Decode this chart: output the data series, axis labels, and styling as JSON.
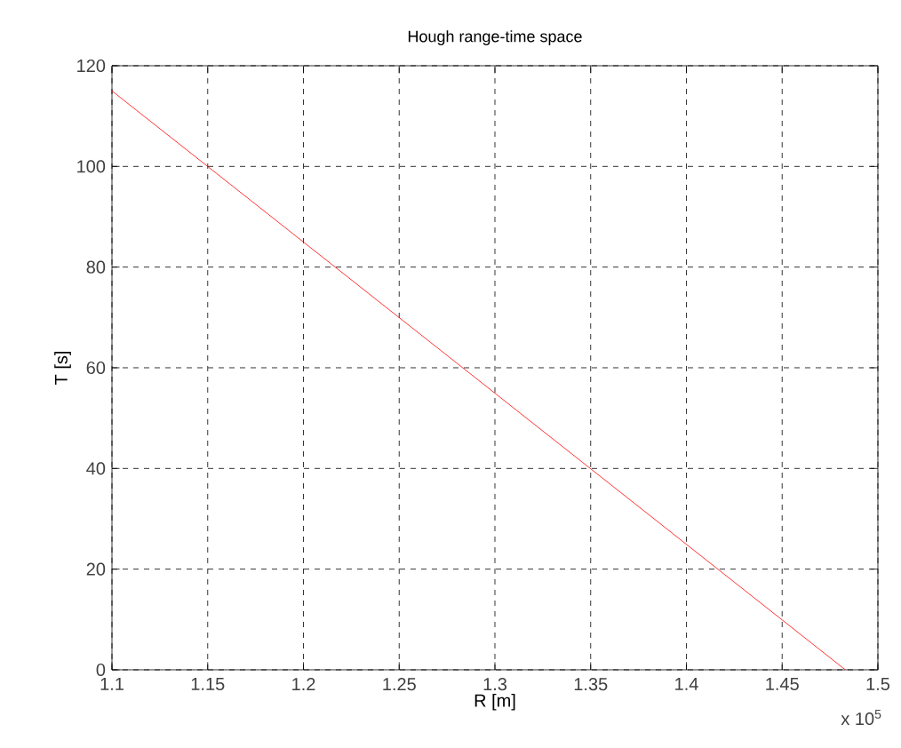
{
  "chart_data": {
    "type": "line",
    "title": "Hough range-time space",
    "xlabel": "R [m]",
    "ylabel": "T [s]",
    "x": [
      1.1,
      1.483
    ],
    "series": [
      {
        "color": "#ff0000",
        "values": [
          115,
          0
        ]
      }
    ],
    "xlim": [
      1.1,
      1.5
    ],
    "xticks": [
      1.1,
      1.15,
      1.2,
      1.25,
      1.3,
      1.35,
      1.4,
      1.45,
      1.5
    ],
    "ylim": [
      0,
      120
    ],
    "yticks": [
      0,
      20,
      40,
      60,
      80,
      100,
      120
    ],
    "annotations": [
      "x 10$^{5}$"
    ],
    "grid": true,
    "marker": "none",
    "line_style": "solid"
  }
}
